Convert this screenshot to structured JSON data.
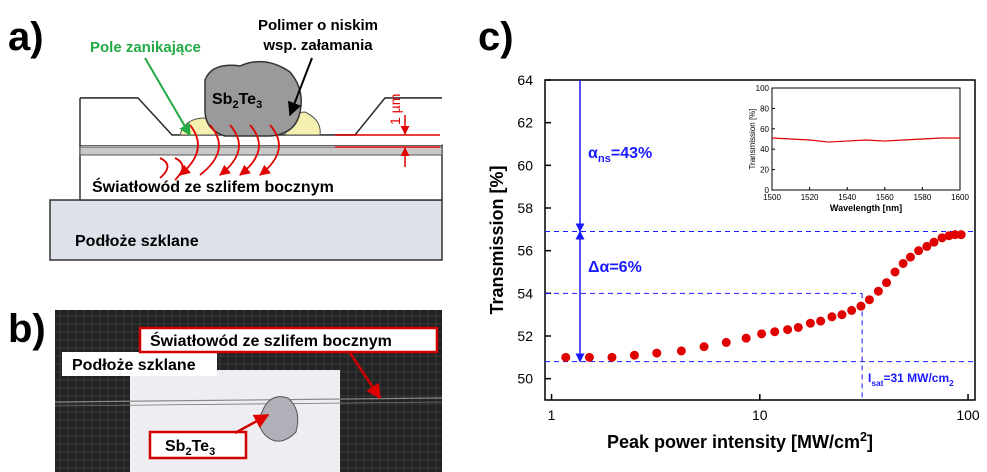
{
  "panel_a": {
    "label": "a)",
    "evanescent": "Pole zanikające",
    "polymer": [
      "Polimer o niskim",
      "wsp. załamania"
    ],
    "material": [
      "Sb",
      "2",
      "Te",
      "3"
    ],
    "thickness": "1 µm",
    "fiber": "Światłowód ze szlifem bocznym",
    "substrate": "Podłoże szklane"
  },
  "panel_b": {
    "label": "b)",
    "fiber": "Światłowód ze szlifem bocznym",
    "substrate": "Podłoże szklane",
    "material": [
      "Sb",
      "2",
      "Te",
      "3"
    ]
  },
  "panel_c": {
    "label": "c)"
  },
  "chart_data": [
    {
      "type": "scatter",
      "color": "#e00000",
      "xlabel": [
        "Peak power intensity [MW/cm",
        "2",
        "]"
      ],
      "ylabel": "Transmission [%]",
      "log_x": true,
      "x": [
        1.17,
        1.52,
        1.95,
        2.5,
        3.2,
        4.2,
        5.4,
        6.9,
        8.6,
        10.2,
        11.8,
        13.6,
        15.3,
        17.5,
        19.6,
        22.2,
        24.8,
        27.6,
        30.6,
        33.6,
        37.1,
        40.6,
        44.6,
        48.8,
        52.9,
        57.9,
        63.4,
        68.6,
        75.0,
        81.0,
        86.6,
        92.7
      ],
      "values": [
        51.0,
        51.0,
        51.0,
        51.1,
        51.2,
        51.3,
        51.5,
        51.7,
        51.9,
        52.1,
        52.2,
        52.3,
        52.4,
        52.6,
        52.7,
        52.9,
        53.0,
        53.2,
        53.4,
        53.7,
        54.1,
        54.5,
        55.0,
        55.4,
        55.7,
        56.0,
        56.2,
        56.4,
        56.6,
        56.7,
        56.75,
        56.75
      ],
      "xlim": [
        0.93,
        108
      ],
      "xticks": [
        1,
        10,
        100
      ],
      "ylim": [
        49,
        64
      ],
      "yticks": [
        50,
        52,
        54,
        56,
        58,
        60,
        62,
        64
      ],
      "annotations": {
        "alpha_ns": [
          "α",
          "ns",
          "=43%"
        ],
        "delta_alpha": "Δα=6%",
        "i_sat": [
          "I",
          "sat",
          "=31 MW/cm",
          "2"
        ]
      },
      "reference_lines": {
        "levels": [
          56.9,
          54,
          50.8
        ],
        "isat_x": 31
      },
      "reference_color": "#1a1aff"
    },
    {
      "type": "line",
      "color": "#e00000",
      "xlabel": "Wavelength [nm]",
      "ylabel": "Transmission [%]",
      "x": [
        1500,
        1510,
        1520,
        1530,
        1540,
        1550,
        1560,
        1570,
        1580,
        1590,
        1600
      ],
      "values": [
        51,
        50,
        49,
        47,
        48,
        49,
        48,
        49,
        50,
        51,
        51
      ],
      "xlim": [
        1500,
        1600
      ],
      "xticks": [
        1500,
        1520,
        1540,
        1560,
        1580,
        1600
      ],
      "ylim": [
        0,
        100
      ],
      "yticks": [
        0,
        20,
        40,
        60,
        80,
        100
      ]
    }
  ]
}
